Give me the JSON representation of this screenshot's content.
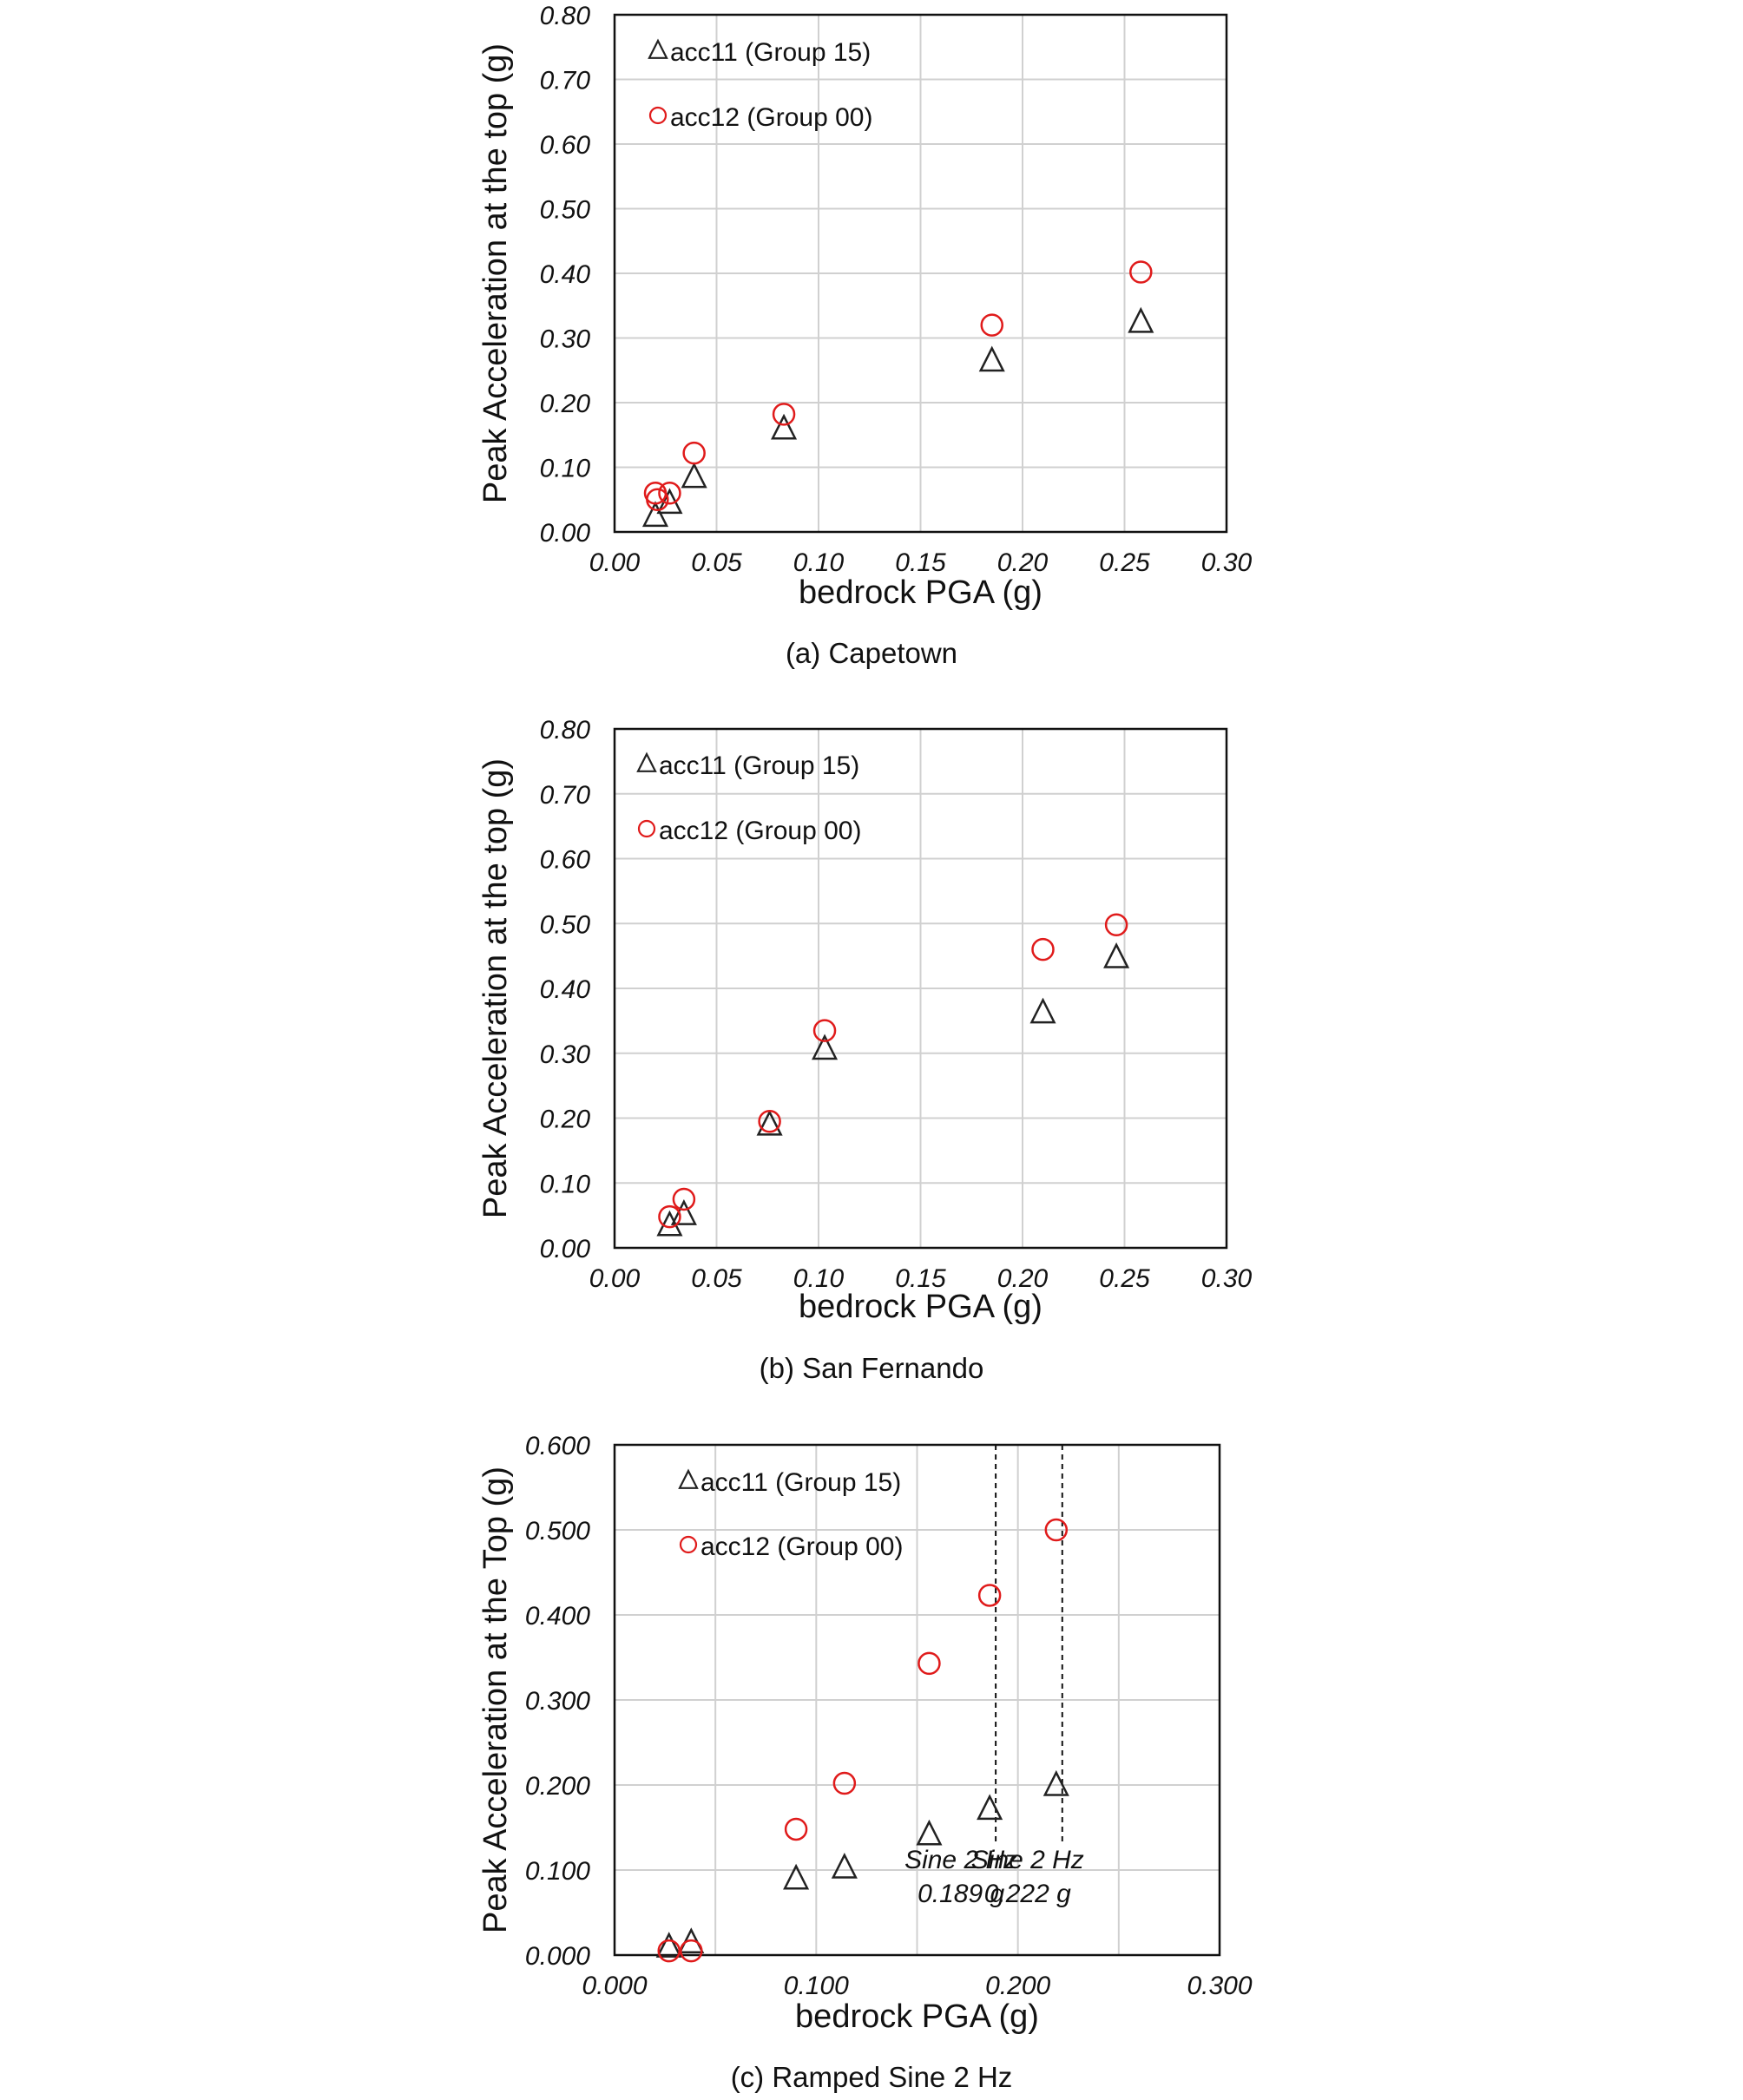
{
  "colors": {
    "circle": "#e01b1b",
    "triangle": "#222222",
    "grid": "#d0d0d0",
    "frame": "#111111"
  },
  "chart_data": [
    {
      "type": "scatter",
      "caption": "(a) Capetown",
      "xlabel": "bedrock PGA (g)",
      "ylabel": "Peak Acceleration at the top (g)",
      "xlim": [
        0,
        0.3
      ],
      "ylim": [
        0,
        0.8
      ],
      "xticks": [
        "0.00",
        "0.05",
        "0.10",
        "0.15",
        "0.20",
        "0.25",
        "0.30"
      ],
      "yticks": [
        "0.00",
        "0.10",
        "0.20",
        "0.30",
        "0.40",
        "0.50",
        "0.60",
        "0.70",
        "0.80"
      ],
      "grid": true,
      "legend_position": "top-left",
      "series": [
        {
          "name": "acc11 (Group 15)",
          "marker": "triangle",
          "points": [
            [
              0.02,
              0.025
            ],
            [
              0.027,
              0.045
            ],
            [
              0.039,
              0.085
            ],
            [
              0.083,
              0.16
            ],
            [
              0.185,
              0.265
            ],
            [
              0.258,
              0.325
            ]
          ]
        },
        {
          "name": "acc12 (Group 00)",
          "marker": "circle",
          "points": [
            [
              0.02,
              0.06
            ],
            [
              0.021,
              0.05
            ],
            [
              0.027,
              0.06
            ],
            [
              0.039,
              0.122
            ],
            [
              0.083,
              0.182
            ],
            [
              0.185,
              0.32
            ],
            [
              0.258,
              0.402
            ]
          ]
        }
      ]
    },
    {
      "type": "scatter",
      "caption": "(b) San Fernando",
      "xlabel": "bedrock PGA (g)",
      "ylabel": "Peak Acceleration at the top (g)",
      "xlim": [
        0,
        0.3
      ],
      "ylim": [
        0,
        0.8
      ],
      "xticks": [
        "0.00",
        "0.05",
        "0.10",
        "0.15",
        "0.20",
        "0.25",
        "0.30"
      ],
      "yticks": [
        "0.00",
        "0.10",
        "0.20",
        "0.30",
        "0.40",
        "0.50",
        "0.60",
        "0.70",
        "0.80"
      ],
      "grid": true,
      "legend_position": "top-left",
      "series": [
        {
          "name": "acc11 (Group 15)",
          "marker": "triangle",
          "points": [
            [
              0.027,
              0.035
            ],
            [
              0.034,
              0.052
            ],
            [
              0.076,
              0.19
            ],
            [
              0.103,
              0.307
            ],
            [
              0.21,
              0.363
            ],
            [
              0.246,
              0.448
            ]
          ]
        },
        {
          "name": "acc12 (Group 00)",
          "marker": "circle",
          "points": [
            [
              0.027,
              0.048
            ],
            [
              0.034,
              0.075
            ],
            [
              0.076,
              0.195
            ],
            [
              0.103,
              0.335
            ],
            [
              0.21,
              0.46
            ],
            [
              0.246,
              0.498
            ]
          ]
        }
      ]
    },
    {
      "type": "scatter",
      "caption": "(c) Ramped Sine 2 Hz",
      "xlabel": "bedrock PGA (g)",
      "ylabel": "Peak Acceleration at the Top (g)",
      "xlim": [
        0,
        0.3
      ],
      "ylim": [
        0,
        0.6
      ],
      "xticks": [
        "0.000",
        "",
        "0.100",
        "",
        "0.200",
        "",
        "0.300"
      ],
      "yticks": [
        "0.000",
        "0.100",
        "0.200",
        "0.300",
        "0.400",
        "0.500",
        "0.600"
      ],
      "grid": true,
      "legend_position": "top-left",
      "series": [
        {
          "name": "acc11 (Group 15)",
          "marker": "triangle",
          "points": [
            [
              0.027,
              0.01
            ],
            [
              0.038,
              0.015
            ],
            [
              0.09,
              0.09
            ],
            [
              0.114,
              0.103
            ],
            [
              0.156,
              0.142
            ],
            [
              0.186,
              0.172
            ],
            [
              0.219,
              0.2
            ]
          ]
        },
        {
          "name": "acc12 (Group 00)",
          "marker": "circle",
          "points": [
            [
              0.027,
              0.005
            ],
            [
              0.038,
              0.005
            ],
            [
              0.09,
              0.148
            ],
            [
              0.114,
              0.202
            ],
            [
              0.156,
              0.343
            ],
            [
              0.186,
              0.423
            ],
            [
              0.219,
              0.5
            ]
          ]
        }
      ],
      "annotations": [
        {
          "x": 0.189,
          "line1": "Sine 2 Hz",
          "line2": "0.189 g"
        },
        {
          "x": 0.222,
          "line1": "Sine 2 Hz",
          "line2": "0.222 g"
        }
      ]
    }
  ]
}
